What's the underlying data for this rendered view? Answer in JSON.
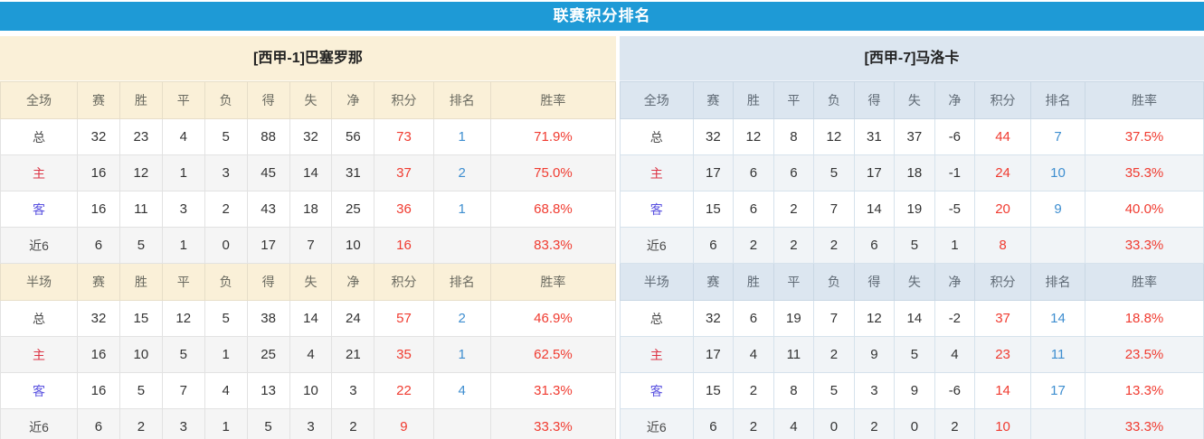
{
  "title": "联赛积分排名",
  "colors": {
    "title_bar": "#1E9AD6",
    "left_header_bg": "#FAF0D8",
    "right_header_bg": "#DCE6F0",
    "points_red": "#F03B30",
    "rank_blue": "#3E8ED0",
    "home_label_red": "#DC3445",
    "away_label_blue": "#5A52E0"
  },
  "columns": [
    "赛",
    "胜",
    "平",
    "负",
    "得",
    "失",
    "净",
    "积分",
    "排名",
    "胜率"
  ],
  "teams": [
    {
      "name": "[西甲-1]巴塞罗那",
      "sections": {
        "full": {
          "label_header": "全场",
          "rows": [
            {
              "label": "总",
              "type": "total",
              "values": [
                "32",
                "23",
                "4",
                "5",
                "88",
                "32",
                "56",
                "73",
                "1",
                "71.9%"
              ]
            },
            {
              "label": "主",
              "type": "home",
              "values": [
                "16",
                "12",
                "1",
                "3",
                "45",
                "14",
                "31",
                "37",
                "2",
                "75.0%"
              ]
            },
            {
              "label": "客",
              "type": "away",
              "values": [
                "16",
                "11",
                "3",
                "2",
                "43",
                "18",
                "25",
                "36",
                "1",
                "68.8%"
              ]
            },
            {
              "label": "近6",
              "type": "recent",
              "values": [
                "6",
                "5",
                "1",
                "0",
                "17",
                "7",
                "10",
                "16",
                "",
                "83.3%"
              ]
            }
          ]
        },
        "half": {
          "label_header": "半场",
          "rows": [
            {
              "label": "总",
              "type": "total",
              "values": [
                "32",
                "15",
                "12",
                "5",
                "38",
                "14",
                "24",
                "57",
                "2",
                "46.9%"
              ]
            },
            {
              "label": "主",
              "type": "home",
              "values": [
                "16",
                "10",
                "5",
                "1",
                "25",
                "4",
                "21",
                "35",
                "1",
                "62.5%"
              ]
            },
            {
              "label": "客",
              "type": "away",
              "values": [
                "16",
                "5",
                "7",
                "4",
                "13",
                "10",
                "3",
                "22",
                "4",
                "31.3%"
              ]
            },
            {
              "label": "近6",
              "type": "recent",
              "values": [
                "6",
                "2",
                "3",
                "1",
                "5",
                "3",
                "2",
                "9",
                "",
                "33.3%"
              ]
            }
          ]
        }
      }
    },
    {
      "name": "[西甲-7]马洛卡",
      "sections": {
        "full": {
          "label_header": "全场",
          "rows": [
            {
              "label": "总",
              "type": "total",
              "values": [
                "32",
                "12",
                "8",
                "12",
                "31",
                "37",
                "-6",
                "44",
                "7",
                "37.5%"
              ]
            },
            {
              "label": "主",
              "type": "home",
              "values": [
                "17",
                "6",
                "6",
                "5",
                "17",
                "18",
                "-1",
                "24",
                "10",
                "35.3%"
              ]
            },
            {
              "label": "客",
              "type": "away",
              "values": [
                "15",
                "6",
                "2",
                "7",
                "14",
                "19",
                "-5",
                "20",
                "9",
                "40.0%"
              ]
            },
            {
              "label": "近6",
              "type": "recent",
              "values": [
                "6",
                "2",
                "2",
                "2",
                "6",
                "5",
                "1",
                "8",
                "",
                "33.3%"
              ]
            }
          ]
        },
        "half": {
          "label_header": "半场",
          "rows": [
            {
              "label": "总",
              "type": "total",
              "values": [
                "32",
                "6",
                "19",
                "7",
                "12",
                "14",
                "-2",
                "37",
                "14",
                "18.8%"
              ]
            },
            {
              "label": "主",
              "type": "home",
              "values": [
                "17",
                "4",
                "11",
                "2",
                "9",
                "5",
                "4",
                "23",
                "11",
                "23.5%"
              ]
            },
            {
              "label": "客",
              "type": "away",
              "values": [
                "15",
                "2",
                "8",
                "5",
                "3",
                "9",
                "-6",
                "14",
                "17",
                "13.3%"
              ]
            },
            {
              "label": "近6",
              "type": "recent",
              "values": [
                "6",
                "2",
                "4",
                "0",
                "2",
                "0",
                "2",
                "10",
                "",
                "33.3%"
              ]
            }
          ]
        }
      }
    }
  ]
}
